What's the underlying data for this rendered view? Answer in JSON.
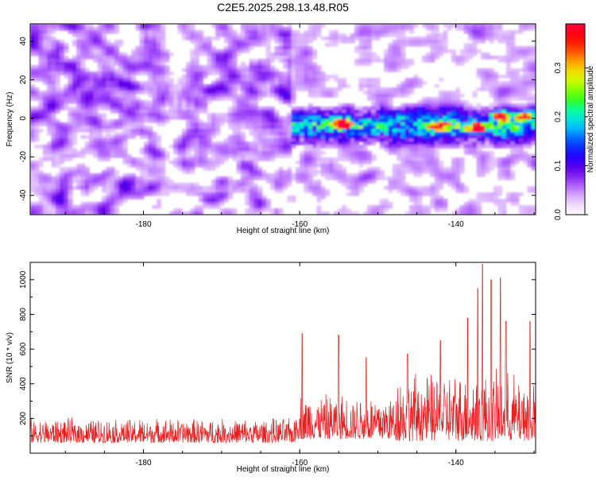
{
  "title": "C2E5.2025.298.13.48.R05",
  "chart_data": [
    {
      "type": "heatmap",
      "xlabel": "Height of straight line (km)",
      "ylabel": "Frequency (Hz)",
      "xlim": [
        -194.5,
        -129.8
      ],
      "ylim": [
        -50,
        49
      ],
      "x_ticks": [
        -180,
        -160,
        -140
      ],
      "y_ticks": [
        40,
        20,
        0,
        -20,
        -40
      ],
      "colorbar": {
        "label": "Normalized spectral amplitude",
        "range": [
          0.0,
          0.39
        ],
        "ticks": [
          0.0,
          0.1,
          0.2,
          0.3
        ],
        "colors": [
          "#ffffff",
          "#e6c8ff",
          "#b060ff",
          "#6a00e8",
          "#2000ff",
          "#0050ff",
          "#00c8ff",
          "#00ffb0",
          "#40ff00",
          "#c8ff00",
          "#ffd000",
          "#ff6000",
          "#ff0000",
          "#ff0040"
        ]
      },
      "background_level": 0.03,
      "signal_band": {
        "x_start": -161,
        "x_end": -129.8,
        "freq_center": -4,
        "freq_halfwidth": 12,
        "level": 0.16
      },
      "hotspots": [
        {
          "x": -154.6,
          "y": -3,
          "value": 0.37
        },
        {
          "x": -137.3,
          "y": -5,
          "value": 0.33
        },
        {
          "x": -134.3,
          "y": 1,
          "value": 0.29
        },
        {
          "x": -142.2,
          "y": -4,
          "value": 0.25
        },
        {
          "x": -131.3,
          "y": 1,
          "value": 0.28
        }
      ],
      "notes": "Frequency-height spectrogram; diffuse purple noise with strong band near 0 Hz after -160 km."
    },
    {
      "type": "line",
      "xlabel": "Height of straight line (km)",
      "ylabel": "SNR (10 * v/v)",
      "xlim": [
        -194.5,
        -129.8
      ],
      "ylim": [
        0,
        1100
      ],
      "x_ticks": [
        -180,
        -160,
        -140
      ],
      "y_ticks": [
        200,
        400,
        600,
        800,
        1000
      ],
      "color": "#e82020",
      "segments": [
        {
          "x": [
            -194.5,
            -160.5
          ],
          "base": 60,
          "amp": 150
        },
        {
          "x": [
            -160.5,
            -148
          ],
          "base": 80,
          "amp": 280
        },
        {
          "x": [
            -148,
            -129.8
          ],
          "base": 70,
          "amp": 420
        }
      ],
      "peaks": [
        {
          "x": -159.7,
          "y": 690
        },
        {
          "x": -155,
          "y": 680
        },
        {
          "x": -151.5,
          "y": 550
        },
        {
          "x": -146.2,
          "y": 570
        },
        {
          "x": -142,
          "y": 650
        },
        {
          "x": -138.5,
          "y": 780
        },
        {
          "x": -137.2,
          "y": 950
        },
        {
          "x": -136.6,
          "y": 1090
        },
        {
          "x": -135.5,
          "y": 1000
        },
        {
          "x": -134.3,
          "y": 1010
        },
        {
          "x": -133.6,
          "y": 760
        },
        {
          "x": -130.5,
          "y": 760
        }
      ],
      "points_count": 1500
    }
  ]
}
